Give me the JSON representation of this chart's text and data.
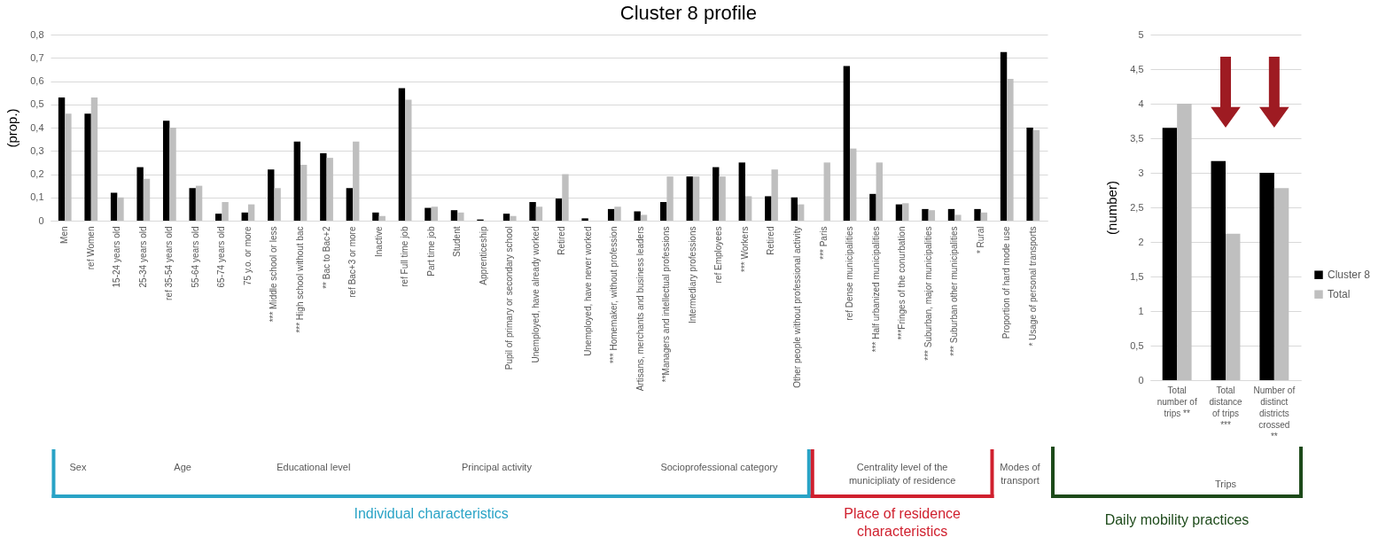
{
  "chart_data": [
    {
      "type": "bar",
      "title": "Cluster 8 profile",
      "ylabel": "(prop.)",
      "categories": [
        "Men",
        "ref Women",
        "15-24 years old",
        "25-34 years old",
        "ref 35-54 years old",
        "55-64 years old",
        "65-74 years old",
        "75 y.o. or more",
        "*** Middle school or less",
        "*** High school without bac",
        "** Bac to Bac+2",
        "ref Bac+3 or more",
        "Inactive",
        "ref Full time job",
        "Part time job",
        "Student",
        "Apprenticeship",
        "Pupil of primary or secondary school",
        "Unemployed, have already worked",
        "Retired",
        "Unemployed, have never worked",
        "*** Homemaker, without profession",
        "Artisans, merchants and business leaders",
        "**Managers and intellectual professions",
        "Intermediary professions",
        "ref Employees",
        "*** Workers",
        "Retired",
        "Other people without professional activity",
        "*** Paris",
        "ref Dense municipalities",
        "*** Half urbanized municipalities",
        "***Fringes of the conurbation",
        "*** Suburban, major municipalities",
        "*** Suburban other municipalities",
        "* Rural",
        "Proportion of hard mode use",
        "* Usage of personal transports"
      ],
      "series": [
        {
          "color": "#000000",
          "values": [
            0.53,
            0.46,
            0.12,
            0.23,
            0.43,
            0.14,
            0.03,
            0.035,
            0.22,
            0.34,
            0.29,
            0.14,
            0.035,
            0.57,
            0.055,
            0.045,
            0.005,
            0.03,
            0.08,
            0.095,
            0.01,
            0.05,
            0.04,
            0.08,
            0.19,
            0.23,
            0.25,
            0.105,
            0.1,
            0,
            0.665,
            0.115,
            0.07,
            0.05,
            0.05,
            0.05,
            0.725,
            0.4
          ]
        },
        {
          "color": "#bfbfbf",
          "values": [
            0.46,
            0.53,
            0.1,
            0.18,
            0.4,
            0.15,
            0.08,
            0.07,
            0.14,
            0.24,
            0.27,
            0.34,
            0.02,
            0.52,
            0.06,
            0.035,
            null,
            0.02,
            0.06,
            0.2,
            null,
            0.06,
            0.025,
            0.19,
            0.19,
            0.19,
            0.105,
            0.22,
            0.07,
            0.25,
            0.31,
            0.25,
            0.075,
            0.045,
            0.025,
            0.035,
            0.61,
            0.39
          ]
        }
      ],
      "ylim": [
        0,
        0.8
      ],
      "yticks": [
        0,
        {
          "value": 0.1,
          "label": "0,1"
        },
        {
          "value": 0.2,
          "label": "0,2"
        },
        {
          "value": 0.3,
          "label": "0,3"
        },
        {
          "value": 0.4,
          "label": "0,4"
        },
        {
          "value": 0.5,
          "label": "0,5"
        },
        {
          "value": 0.6,
          "label": "0,6"
        },
        {
          "value": 0.7,
          "label": "0,7"
        },
        {
          "value": 0.8,
          "label": "0,8"
        }
      ],
      "grid": "y",
      "annotations": [
        "Sex",
        "Age",
        "Educational level",
        "Principal activity",
        "Socioprofessional category",
        "Centrality level of the municipliaty of residence",
        "Modes of transport",
        "Individual characteristics",
        "Place of residence characteristics"
      ]
    },
    {
      "type": "bar",
      "ylabel": "(number)",
      "categories": [
        "Total number of trips **",
        "Total distance of trips ***",
        "Number of distinct districts crossed **"
      ],
      "series": [
        {
          "name": "Cluster 8",
          "color": "#000000",
          "values": [
            3.65,
            3.17,
            3.0
          ]
        },
        {
          "name": "Total",
          "color": "#bfbfbf",
          "values": [
            4.0,
            2.12,
            2.78
          ]
        }
      ],
      "ylim": [
        0,
        5
      ],
      "yticks": [
        0,
        {
          "value": 0.5,
          "label": "0,5"
        },
        1,
        {
          "value": 1.5,
          "label": "1,5"
        },
        2,
        {
          "value": 2.5,
          "label": "2,5"
        },
        3,
        {
          "value": 3.5,
          "label": "3,5"
        },
        4,
        {
          "value": 4.5,
          "label": "4,5"
        },
        5
      ],
      "grid": "y",
      "legend": "right",
      "annotations": [
        "Trips",
        "Daily mobility practices"
      ]
    }
  ]
}
